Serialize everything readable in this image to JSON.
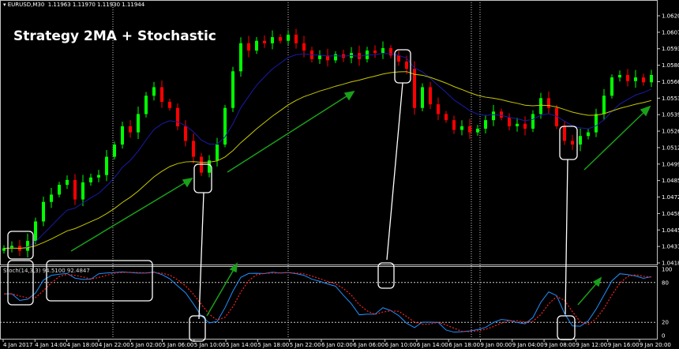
{
  "header": {
    "symbol": "EURUSD,M30",
    "ohlc": "1.11963 1.11970 1.11930 1.11944"
  },
  "title": "Strategy 2MA + Stochastic",
  "stoch_label": "Stoch(14,3,3) 94.5100 92.4847",
  "colors": {
    "bull": "#00ff00",
    "bear": "#ff0000",
    "fast_ma": "#1a1aa8",
    "slow_ma": "#c8c800",
    "stoch_main": "#1e90ff",
    "stoch_signal": "#ff2020",
    "arrow": "#1aa01a",
    "annotation": "#ffffff"
  },
  "chart_data": [
    {
      "type": "candlestick",
      "symbol": "EURUSD",
      "timeframe": "M30",
      "ylim": [
        1.0418,
        1.06205
      ],
      "y_ticks": [
        "1.06205",
        "1.06070",
        "1.05935",
        "1.05800",
        "1.05665",
        "1.05530",
        "1.05395",
        "1.05260",
        "1.05125",
        "1.04990",
        "1.04855",
        "1.04720",
        "1.04585",
        "1.04450",
        "1.04315",
        "1.04180"
      ],
      "x_ticks": [
        "4 Jan 2017",
        "4 Jan 14:00",
        "4 Jan 18:00",
        "4 Jan 22:00",
        "5 Jan 02:00",
        "5 Jan 06:00",
        "5 Jan 10:00",
        "5 Jan 14:00",
        "5 Jan 18:00",
        "5 Jan 22:00",
        "6 Jan 02:00",
        "6 Jan 06:00",
        "6 Jan 10:00",
        "6 Jan 14:00",
        "6 Jan 18:00",
        "9 Jan 00:00",
        "9 Jan 04:00",
        "9 Jan 08:00",
        "9 Jan 12:00",
        "9 Jan 16:00",
        "9 Jan 20:00"
      ],
      "closes": [
        1.043,
        1.0432,
        1.0428,
        1.0436,
        1.0452,
        1.0468,
        1.0474,
        1.0482,
        1.0486,
        1.047,
        1.0484,
        1.0488,
        1.049,
        1.0505,
        1.0515,
        1.053,
        1.0525,
        1.054,
        1.0555,
        1.0562,
        1.055,
        1.0545,
        1.053,
        1.0518,
        1.0505,
        1.0492,
        1.0502,
        1.0515,
        1.0545,
        1.0575,
        1.0598,
        1.0592,
        1.06,
        1.0598,
        1.0603,
        1.06,
        1.0605,
        1.0598,
        1.0592,
        1.0585,
        1.0588,
        1.0584,
        1.0589,
        1.0586,
        1.059,
        1.0585,
        1.0592,
        1.059,
        1.0594,
        1.0588,
        1.0583,
        1.0577,
        1.0545,
        1.0562,
        1.0548,
        1.054,
        1.0535,
        1.0527,
        1.053,
        1.0525,
        1.0528,
        1.0535,
        1.0542,
        1.0537,
        1.053,
        1.0532,
        1.0528,
        1.054,
        1.0553,
        1.0545,
        1.053,
        1.0518,
        1.0515,
        1.0522,
        1.0525,
        1.054,
        1.0555,
        1.057,
        1.0572,
        1.0567,
        1.057,
        1.0566,
        1.0572
      ],
      "series": [
        {
          "name": "fast MA"
        },
        {
          "name": "slow MA"
        }
      ]
    },
    {
      "type": "line",
      "indicator": "Stoch(14,3,3)",
      "ylim": [
        0,
        100
      ],
      "y_ticks": [
        "100",
        "80",
        "20",
        "0"
      ],
      "levels": [
        80,
        20
      ]
    }
  ]
}
